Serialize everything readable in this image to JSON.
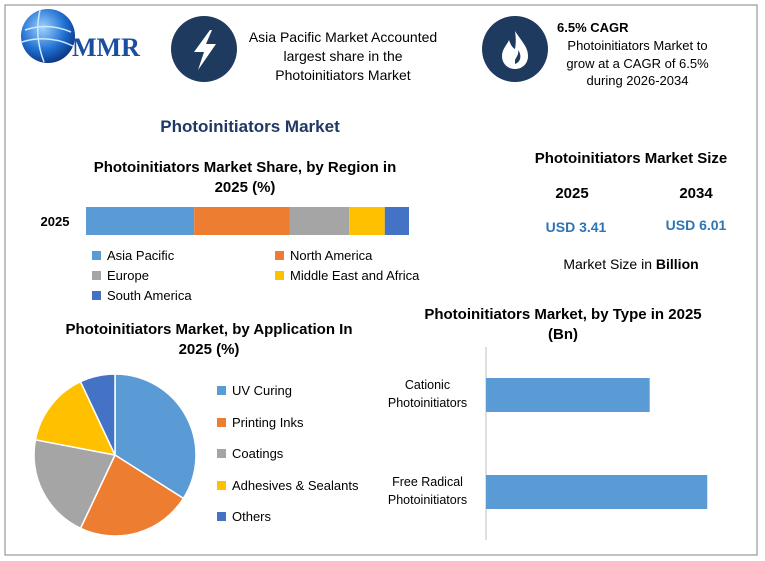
{
  "logo": "MMR",
  "callouts": [
    {
      "text": "Asia Pacific Market Accounted largest share in the Photoinitiators Market"
    },
    {
      "title": "6.5% CAGR",
      "text": "Photoinitiators Market to grow at a CAGR of 6.5% during 2026-2034"
    }
  ],
  "title": "Photoinitiators Market",
  "market_size": {
    "title": "Photoinitiators Market Size",
    "columns": [
      {
        "year": "2025",
        "value": "USD 3.41"
      },
      {
        "year": "2034",
        "value": "USD 6.01"
      }
    ],
    "note": "Market Size in",
    "note_unit": "Billion"
  },
  "chart_data": [
    {
      "type": "stacked-bar",
      "orientation": "horizontal",
      "title": "Photoinitiators Market Share, by Region in 2025 (%)",
      "categories": [
        "2025"
      ],
      "xlim": [
        0,
        100
      ],
      "series": [
        {
          "name": "Asia Pacific",
          "color": "#5b9bd5",
          "values": [
            33.5
          ]
        },
        {
          "name": "North America",
          "color": "#ed7d31",
          "values": [
            29.5
          ]
        },
        {
          "name": "Europe",
          "color": "#a5a5a5",
          "values": [
            18.5
          ]
        },
        {
          "name": "Middle East and Africa",
          "color": "#ffc000",
          "values": [
            11
          ]
        },
        {
          "name": "South America",
          "color": "#4472c4",
          "values": [
            7.5
          ]
        }
      ]
    },
    {
      "type": "pie",
      "title": "Photoinitiators Market, by Application In 2025 (%)",
      "categories": [
        "UV Curing",
        "Printing Inks",
        "Coatings",
        "Adhesives & Sealants",
        "Others"
      ],
      "values": [
        34,
        23,
        21,
        15,
        7
      ],
      "colors": [
        "#5b9bd5",
        "#ed7d31",
        "#a5a5a5",
        "#ffc000",
        "#4472c4"
      ]
    },
    {
      "type": "bar",
      "orientation": "horizontal",
      "title": "Photoinitiators Market, by Type in 2025 (Bn)",
      "categories": [
        "Cationic Photoinitiators",
        "Free Radical Photoinitiators"
      ],
      "values": [
        1.45,
        1.96
      ],
      "color": "#5b9bd5",
      "xlim": [
        0,
        2.25
      ]
    }
  ]
}
